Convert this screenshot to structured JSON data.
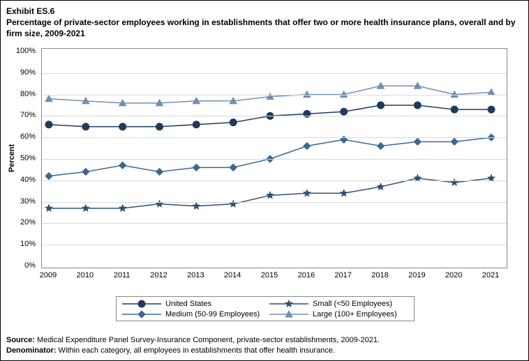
{
  "header": {
    "exhibit_label": "Exhibit ES.6",
    "title": "Percentage of private-sector employees working in establishments that offer two or more health insurance plans, overall and by firm size, 2009-2021"
  },
  "chart": {
    "type": "line",
    "y_axis_title": "Percent",
    "ylim": [
      0,
      100
    ],
    "ytick_step": 10,
    "y_tick_suffix": "%",
    "x_values": [
      2009,
      2010,
      2011,
      2012,
      2013,
      2014,
      2015,
      2016,
      2017,
      2018,
      2019,
      2020,
      2021
    ],
    "background_color": "#ffffff",
    "grid_color": "#d9d9d9",
    "border_color": "#888888",
    "line_width": 1.5,
    "marker_size": 5,
    "series": [
      {
        "name": "United States",
        "color": "#1f3b5c",
        "marker": "circle",
        "values": [
          66,
          65,
          65,
          65,
          66,
          67,
          70,
          71,
          72,
          75,
          75,
          73,
          73
        ]
      },
      {
        "name": "Small (<50 Employees)",
        "color": "#2f5077",
        "marker": "star",
        "values": [
          27,
          27,
          27,
          29,
          28,
          29,
          33,
          34,
          34,
          37,
          41,
          39,
          41
        ]
      },
      {
        "name": "Medium (50-99 Employees)",
        "color": "#3e6691",
        "marker": "diamond",
        "values": [
          42,
          44,
          47,
          44,
          46,
          46,
          50,
          56,
          59,
          56,
          58,
          58,
          60
        ]
      },
      {
        "name": "Large (100+ Employees)",
        "color": "#6e8fb3",
        "marker": "triangle",
        "values": [
          78,
          77,
          76,
          76,
          77,
          77,
          79,
          80,
          80,
          84,
          84,
          80,
          81
        ]
      }
    ]
  },
  "legend": {
    "items": [
      {
        "label": "United States"
      },
      {
        "label": "Small (<50 Employees)"
      },
      {
        "label": "Medium (50-99 Employees)"
      },
      {
        "label": "Large (100+ Employees)"
      }
    ]
  },
  "footer": {
    "source_label": "Source:",
    "source_text": " Medical Expenditure Panel Survey-Insurance Component, private-sector establishments, 2009-2021.",
    "denom_label": "Denominator:",
    "denom_text": " Within each category, all employees in establishments that offer health insurance."
  }
}
